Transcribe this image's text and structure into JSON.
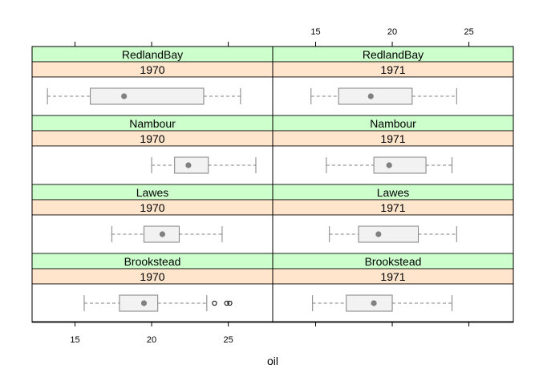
{
  "chart_data": {
    "type": "boxplot",
    "xlabel": "oil",
    "xlim": [
      12.2,
      27.9
    ],
    "x_ticks": [
      15,
      20,
      25
    ],
    "column_groups": [
      "1970",
      "1971"
    ],
    "row_groups": [
      "RedlandBay",
      "Nambour",
      "Lawes",
      "Brookstead"
    ],
    "panels": [
      {
        "location": "RedlandBay",
        "year": "1970",
        "whisker_low": 13.2,
        "q1": 16.0,
        "median": 18.2,
        "q3": 23.4,
        "whisker_high": 25.8,
        "outliers": []
      },
      {
        "location": "RedlandBay",
        "year": "1971",
        "whisker_low": 14.7,
        "q1": 16.5,
        "median": 18.6,
        "q3": 21.3,
        "whisker_high": 24.2,
        "outliers": []
      },
      {
        "location": "Nambour",
        "year": "1970",
        "whisker_low": 20.0,
        "q1": 21.5,
        "median": 22.4,
        "q3": 23.7,
        "whisker_high": 26.8,
        "outliers": []
      },
      {
        "location": "Nambour",
        "year": "1971",
        "whisker_low": 15.7,
        "q1": 18.8,
        "median": 19.8,
        "q3": 22.2,
        "whisker_high": 23.9,
        "outliers": []
      },
      {
        "location": "Lawes",
        "year": "1970",
        "whisker_low": 17.4,
        "q1": 19.5,
        "median": 20.7,
        "q3": 21.8,
        "whisker_high": 24.6,
        "outliers": []
      },
      {
        "location": "Lawes",
        "year": "1971",
        "whisker_low": 15.9,
        "q1": 17.8,
        "median": 19.1,
        "q3": 21.7,
        "whisker_high": 24.2,
        "outliers": []
      },
      {
        "location": "Brookstead",
        "year": "1970",
        "whisker_low": 15.6,
        "q1": 17.9,
        "median": 19.5,
        "q3": 20.4,
        "whisker_high": 23.6,
        "outliers": [
          24.1,
          24.9,
          25.1
        ]
      },
      {
        "location": "Brookstead",
        "year": "1971",
        "whisker_low": 14.8,
        "q1": 17.0,
        "median": 18.8,
        "q3": 20.0,
        "whisker_high": 23.9,
        "outliers": []
      }
    ],
    "colors": {
      "location_strip": "#ccffcc",
      "year_strip": "#ffe5cc",
      "box_fill": "#f2f2f2",
      "box_stroke": "#808080",
      "dot": "#808080",
      "whisker": "#808080"
    }
  }
}
